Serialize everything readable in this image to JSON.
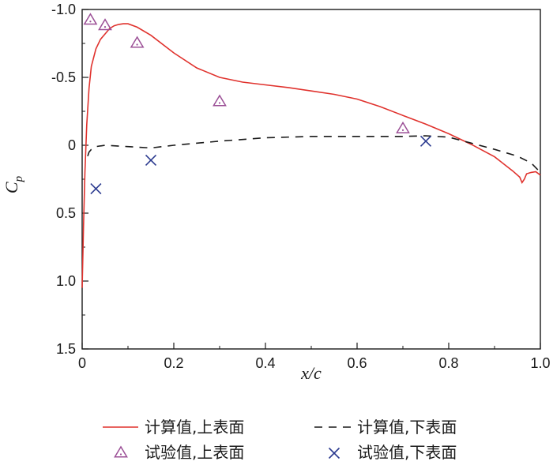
{
  "chart_data": {
    "type": "line",
    "xlabel": "x/c",
    "ylabel": "C",
    "ylabel_sub": "p",
    "xlim": [
      0,
      1.0
    ],
    "ylim": [
      -1.0,
      1.5
    ],
    "y_inverted": true,
    "x_ticks": [
      "0",
      "0.2",
      "0.4",
      "0.6",
      "0.8",
      "1.0"
    ],
    "x_tick_values": [
      0,
      0.2,
      0.4,
      0.6,
      0.8,
      1.0
    ],
    "y_ticks": [
      "-1.0",
      "-0.5",
      "0",
      "0.5",
      "1.0",
      "1.5"
    ],
    "y_tick_values": [
      -1.0,
      -0.5,
      0,
      0.5,
      1.0,
      1.5
    ],
    "grid": false,
    "legend_position": "bottom",
    "series": [
      {
        "name": "计算值,上表面",
        "kind": "line",
        "style": "solid",
        "color": "#e0322d",
        "x": [
          0.0,
          0.003,
          0.006,
          0.01,
          0.015,
          0.02,
          0.03,
          0.04,
          0.05,
          0.06,
          0.07,
          0.08,
          0.09,
          0.1,
          0.12,
          0.15,
          0.2,
          0.25,
          0.3,
          0.35,
          0.4,
          0.45,
          0.5,
          0.55,
          0.6,
          0.65,
          0.7,
          0.75,
          0.8,
          0.85,
          0.9,
          0.94,
          0.955,
          0.96,
          0.965,
          0.97,
          0.98,
          0.99,
          1.0
        ],
        "y": [
          1.05,
          0.6,
          0.2,
          -0.15,
          -0.42,
          -0.58,
          -0.71,
          -0.78,
          -0.82,
          -0.86,
          -0.88,
          -0.89,
          -0.895,
          -0.895,
          -0.87,
          -0.81,
          -0.68,
          -0.57,
          -0.5,
          -0.465,
          -0.445,
          -0.425,
          -0.4,
          -0.375,
          -0.34,
          -0.285,
          -0.22,
          -0.155,
          -0.085,
          -0.005,
          0.085,
          0.19,
          0.235,
          0.275,
          0.25,
          0.21,
          0.2,
          0.195,
          0.22
        ]
      },
      {
        "name": "计算值,下表面",
        "kind": "line",
        "style": "dashed",
        "color": "#1a1a1a",
        "x": [
          0.012,
          0.015,
          0.02,
          0.03,
          0.05,
          0.1,
          0.15,
          0.2,
          0.3,
          0.4,
          0.5,
          0.6,
          0.7,
          0.75,
          0.8,
          0.85,
          0.9,
          0.95,
          0.98,
          1.0
        ],
        "y": [
          0.08,
          0.05,
          0.03,
          0.01,
          0.0,
          0.01,
          0.02,
          0.0,
          -0.03,
          -0.055,
          -0.065,
          -0.065,
          -0.065,
          -0.07,
          -0.06,
          -0.015,
          0.03,
          0.08,
          0.13,
          0.2
        ]
      },
      {
        "name": "试验值,上表面",
        "kind": "scatter",
        "marker": "triangle",
        "color": "#9b4f96",
        "x": [
          0.018,
          0.05,
          0.12,
          0.3,
          0.7
        ],
        "y": [
          -0.92,
          -0.88,
          -0.75,
          -0.32,
          -0.12
        ]
      },
      {
        "name": "试验值,下表面",
        "kind": "scatter",
        "marker": "x",
        "color": "#2b3a8f",
        "x": [
          0.03,
          0.15,
          0.75
        ],
        "y": [
          0.32,
          0.11,
          -0.03
        ]
      }
    ]
  }
}
